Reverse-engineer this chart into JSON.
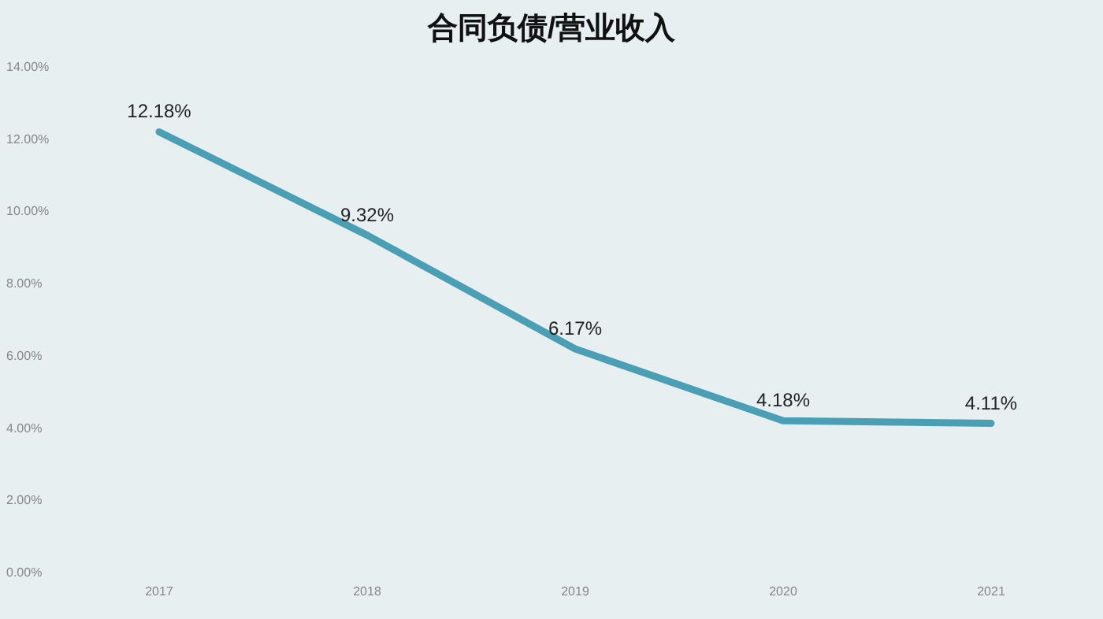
{
  "chart_data": {
    "type": "line",
    "title": "合同负债/营业收入",
    "categories": [
      "2017",
      "2018",
      "2019",
      "2020",
      "2021"
    ],
    "series": [
      {
        "color": "#4a9fb5",
        "values": [
          12.18,
          9.32,
          6.17,
          4.18,
          4.11
        ]
      }
    ],
    "value_labels": [
      "12.18%",
      "9.32%",
      "6.17%",
      "4.18%",
      "4.11%"
    ],
    "ylim": [
      0,
      14
    ],
    "yticks": [
      {
        "value": 0,
        "label": "0.00%"
      },
      {
        "value": 2,
        "label": "2.00%"
      },
      {
        "value": 4,
        "label": "4.00%"
      },
      {
        "value": 6,
        "label": "6.00%"
      },
      {
        "value": 8,
        "label": "8.00%"
      },
      {
        "value": 10,
        "label": "10.00%"
      },
      {
        "value": 12,
        "label": "12.00%"
      },
      {
        "value": 14,
        "label": "14.00%"
      }
    ],
    "grid": false,
    "marker": "none",
    "line_style": "solid"
  }
}
